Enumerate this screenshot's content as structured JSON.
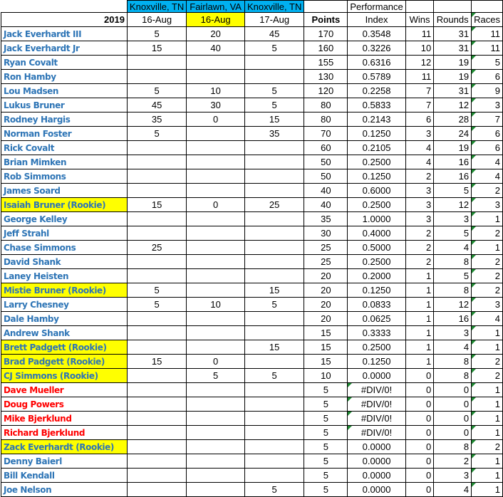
{
  "header": {
    "locations": [
      "Knoxville, TN",
      "Fairlawn, VA",
      "Knoxville, TN"
    ],
    "year": "2019",
    "dates": [
      "16-Aug",
      "16-Aug",
      "17-Aug"
    ],
    "points": "Points",
    "performance": "Performance",
    "index": "Index",
    "wins": "Wins",
    "rounds": "Rounds",
    "races": "Races"
  },
  "colors": {
    "name_blue": "#2e75b6",
    "name_red": "#ff0000",
    "rookie_highlight": "#ffff00",
    "location_header": "#00b0f0",
    "error_marker": "#1e8a32"
  },
  "rows": [
    {
      "name": "Jack Everhardt III",
      "style": "blue",
      "e1": "5",
      "e2": "20",
      "e3": "45",
      "points": "170",
      "index": "0.3548",
      "wins": "11",
      "rounds": "31",
      "races": "11"
    },
    {
      "name": "Jack Everhardt Jr",
      "style": "blue",
      "e1": "15",
      "e2": "40",
      "e3": "5",
      "points": "160",
      "index": "0.3226",
      "wins": "10",
      "rounds": "31",
      "races": "11"
    },
    {
      "name": "Ryan Covalt",
      "style": "blue",
      "e1": "",
      "e2": "",
      "e3": "",
      "points": "155",
      "index": "0.6316",
      "wins": "12",
      "rounds": "19",
      "races": "5"
    },
    {
      "name": "Ron Hamby",
      "style": "blue",
      "e1": "",
      "e2": "",
      "e3": "",
      "points": "130",
      "index": "0.5789",
      "wins": "11",
      "rounds": "19",
      "races": "6"
    },
    {
      "name": "Lou Madsen",
      "style": "blue",
      "e1": "5",
      "e2": "10",
      "e3": "5",
      "points": "120",
      "index": "0.2258",
      "wins": "7",
      "rounds": "31",
      "races": "9"
    },
    {
      "name": "Lukus Bruner",
      "style": "blue",
      "e1": "45",
      "e2": "30",
      "e3": "5",
      "points": "80",
      "index": "0.5833",
      "wins": "7",
      "rounds": "12",
      "races": "3"
    },
    {
      "name": "Rodney Hargis",
      "style": "blue",
      "e1": "35",
      "e2": "0",
      "e3": "15",
      "points": "80",
      "index": "0.2143",
      "wins": "6",
      "rounds": "28",
      "races": "7"
    },
    {
      "name": "Norman Foster",
      "style": "blue",
      "e1": "5",
      "e2": "",
      "e3": "35",
      "points": "70",
      "index": "0.1250",
      "wins": "3",
      "rounds": "24",
      "races": "6"
    },
    {
      "name": "Rick Covalt",
      "style": "blue",
      "e1": "",
      "e2": "",
      "e3": "",
      "points": "60",
      "index": "0.2105",
      "wins": "4",
      "rounds": "19",
      "races": "6"
    },
    {
      "name": "Brian Mimken",
      "style": "blue",
      "e1": "",
      "e2": "",
      "e3": "",
      "points": "50",
      "index": "0.2500",
      "wins": "4",
      "rounds": "16",
      "races": "4"
    },
    {
      "name": "Rob Simmons",
      "style": "blue",
      "e1": "",
      "e2": "",
      "e3": "",
      "points": "50",
      "index": "0.1250",
      "wins": "2",
      "rounds": "16",
      "races": "4"
    },
    {
      "name": "James Soard",
      "style": "blue",
      "e1": "",
      "e2": "",
      "e3": "",
      "points": "40",
      "index": "0.6000",
      "wins": "3",
      "rounds": "5",
      "races": "2"
    },
    {
      "name": "Isaiah Bruner (Rookie)",
      "style": "rookie",
      "e1": "15",
      "e2": "0",
      "e3": "25",
      "points": "40",
      "index": "0.2500",
      "wins": "3",
      "rounds": "12",
      "races": "3"
    },
    {
      "name": "George Kelley",
      "style": "blue",
      "e1": "",
      "e2": "",
      "e3": "",
      "points": "35",
      "index": "1.0000",
      "wins": "3",
      "rounds": "3",
      "races": "1"
    },
    {
      "name": "Jeff Strahl",
      "style": "blue",
      "e1": "",
      "e2": "",
      "e3": "",
      "points": "30",
      "index": "0.4000",
      "wins": "2",
      "rounds": "5",
      "races": "2"
    },
    {
      "name": "Chase Simmons",
      "style": "blue",
      "e1": "25",
      "e2": "",
      "e3": "",
      "points": "25",
      "index": "0.5000",
      "wins": "2",
      "rounds": "4",
      "races": "1"
    },
    {
      "name": "David Shank",
      "style": "blue",
      "e1": "",
      "e2": "",
      "e3": "",
      "points": "25",
      "index": "0.2500",
      "wins": "2",
      "rounds": "8",
      "races": "2"
    },
    {
      "name": "Laney Heisten",
      "style": "blue",
      "e1": "",
      "e2": "",
      "e3": "",
      "points": "20",
      "index": "0.2000",
      "wins": "1",
      "rounds": "5",
      "races": "2"
    },
    {
      "name": "Mistie Bruner (Rookie)",
      "style": "rookie",
      "e1": "5",
      "e2": "",
      "e3": "15",
      "points": "20",
      "index": "0.1250",
      "wins": "1",
      "rounds": "8",
      "races": "2"
    },
    {
      "name": "Larry Chesney",
      "style": "blue",
      "e1": "5",
      "e2": "10",
      "e3": "5",
      "points": "20",
      "index": "0.0833",
      "wins": "1",
      "rounds": "12",
      "races": "3"
    },
    {
      "name": "Dale Hamby",
      "style": "blue",
      "e1": "",
      "e2": "",
      "e3": "",
      "points": "20",
      "index": "0.0625",
      "wins": "1",
      "rounds": "16",
      "races": "4"
    },
    {
      "name": "Andrew Shank",
      "style": "blue",
      "e1": "",
      "e2": "",
      "e3": "",
      "points": "15",
      "index": "0.3333",
      "wins": "1",
      "rounds": "3",
      "races": "1"
    },
    {
      "name": "Brett Padgett (Rookie)",
      "style": "rookie",
      "e1": "",
      "e2": "",
      "e3": "15",
      "points": "15",
      "index": "0.2500",
      "wins": "1",
      "rounds": "4",
      "races": "1"
    },
    {
      "name": "Brad Padgett (Rookie)",
      "style": "rookie",
      "e1": "15",
      "e2": "0",
      "e3": "",
      "points": "15",
      "index": "0.1250",
      "wins": "1",
      "rounds": "8",
      "races": "2"
    },
    {
      "name": "CJ Simmons (Rookie)",
      "style": "rookie",
      "e1": "",
      "e2": "5",
      "e3": "5",
      "points": "10",
      "index": "0.0000",
      "wins": "0",
      "rounds": "8",
      "races": "2"
    },
    {
      "name": "Dave Mueller",
      "style": "red",
      "e1": "",
      "e2": "",
      "e3": "",
      "points": "5",
      "index": "#DIV/0!",
      "wins": "0",
      "rounds": "0",
      "races": "1"
    },
    {
      "name": "Doug Powers",
      "style": "red",
      "e1": "",
      "e2": "",
      "e3": "",
      "points": "5",
      "index": "#DIV/0!",
      "wins": "0",
      "rounds": "0",
      "races": "1"
    },
    {
      "name": "Mike Bjerklund",
      "style": "red",
      "e1": "",
      "e2": "",
      "e3": "",
      "points": "5",
      "index": "#DIV/0!",
      "wins": "0",
      "rounds": "0",
      "races": "1"
    },
    {
      "name": "Richard Bjerklund",
      "style": "red",
      "e1": "",
      "e2": "",
      "e3": "",
      "points": "5",
      "index": "#DIV/0!",
      "wins": "0",
      "rounds": "0",
      "races": "1"
    },
    {
      "name": "Zack Everhardt (Rookie)",
      "style": "rookie",
      "e1": "",
      "e2": "",
      "e3": "",
      "points": "5",
      "index": "0.0000",
      "wins": "0",
      "rounds": "8",
      "races": "2"
    },
    {
      "name": "Denny Baierl",
      "style": "blue",
      "e1": "",
      "e2": "",
      "e3": "",
      "points": "5",
      "index": "0.0000",
      "wins": "0",
      "rounds": "2",
      "races": "1"
    },
    {
      "name": "Bill Kendall",
      "style": "blue",
      "e1": "",
      "e2": "",
      "e3": "",
      "points": "5",
      "index": "0.0000",
      "wins": "0",
      "rounds": "3",
      "races": "1"
    },
    {
      "name": "Joe Nelson",
      "style": "blue",
      "e1": "",
      "e2": "",
      "e3": "5",
      "points": "5",
      "index": "0.0000",
      "wins": "0",
      "rounds": "4",
      "races": "1"
    }
  ]
}
